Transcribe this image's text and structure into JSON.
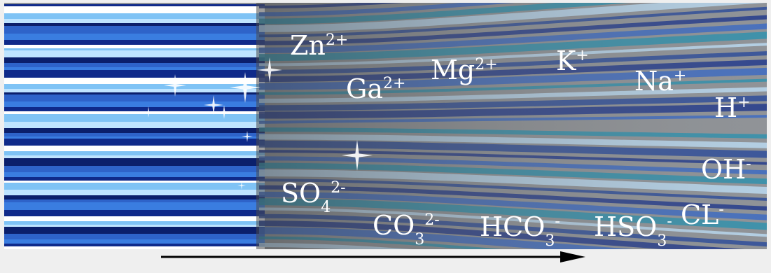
{
  "colors": {
    "background": "#efefef",
    "fiber_dark": "#0f2a8a",
    "fiber_light": "#bfe4ff",
    "fiber_mid": "#2e63c9",
    "overlay": "#555555",
    "cyan_band": "#1e8fb0",
    "arrow": "#000000",
    "text": "#ffffff"
  },
  "cations": [
    {
      "id": "zn",
      "symbol": "Zn",
      "sup": "2+"
    },
    {
      "id": "ga",
      "symbol": "Ga",
      "sup": "2+"
    },
    {
      "id": "mg",
      "symbol": "Mg",
      "sup": "2+"
    },
    {
      "id": "k",
      "symbol": "K",
      "sup": "+"
    },
    {
      "id": "na",
      "symbol": "Na",
      "sup": "+"
    },
    {
      "id": "h",
      "symbol": "H",
      "sup": "+"
    }
  ],
  "anions": [
    {
      "id": "oh",
      "symbol": "OH",
      "sub": "",
      "sup": "-"
    },
    {
      "id": "so4",
      "symbol": "SO",
      "sub": "4",
      "sup": "2-"
    },
    {
      "id": "co3",
      "symbol": "CO",
      "sub": "3",
      "sup": "2-"
    },
    {
      "id": "hco3",
      "symbol": "HCO",
      "sub": "3",
      "sup": "-"
    },
    {
      "id": "hso3",
      "symbol": "HSO",
      "sub": "3",
      "sup": "-"
    },
    {
      "id": "cl",
      "symbol": "CL",
      "sub": "",
      "sup": "-"
    }
  ],
  "flow_arrow": {
    "icon": "flow-direction-arrow-icon"
  }
}
